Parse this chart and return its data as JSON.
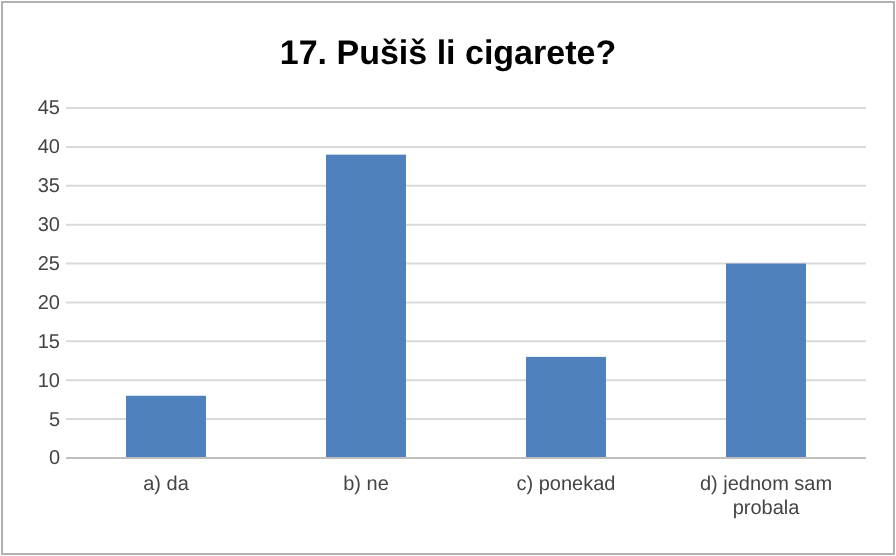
{
  "chart_data": {
    "type": "bar",
    "title": "17. Pušiš li cigarete?",
    "categories": [
      "a) da",
      "b) ne",
      "c) ponekad",
      "d) jednom sam probala"
    ],
    "values": [
      8,
      39,
      13,
      25
    ],
    "color": "#4f81bd",
    "ylim": [
      0,
      45
    ],
    "yticks": [
      0,
      5,
      10,
      15,
      20,
      25,
      30,
      35,
      40,
      45
    ],
    "grid": "y"
  }
}
